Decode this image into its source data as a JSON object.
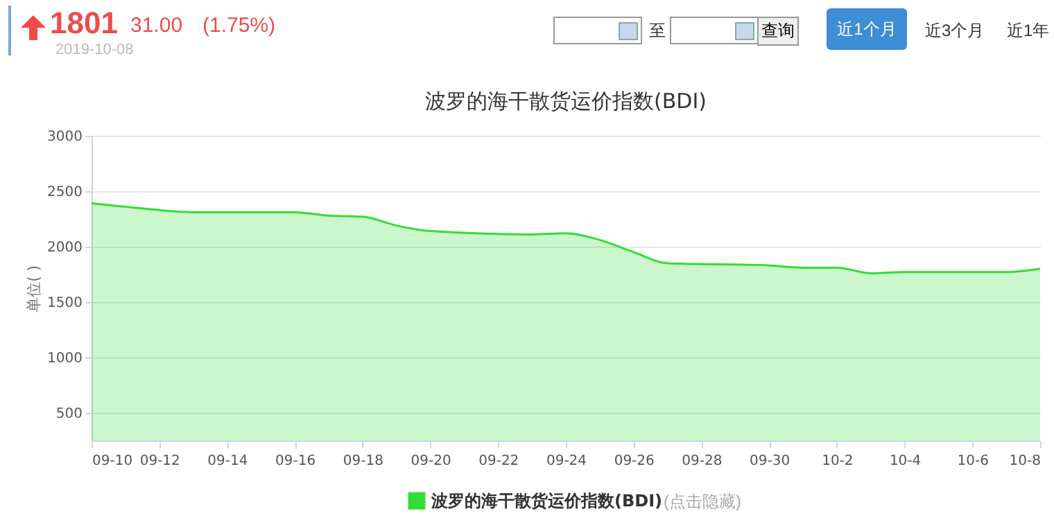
{
  "chart_data": {
    "type": "area",
    "title": "波罗的海干散货运价指数(BDI)",
    "ylabel": "单位( )",
    "x": [
      "2019-09-10",
      "2019-09-11",
      "2019-09-12",
      "2019-09-13",
      "2019-09-16",
      "2019-09-17",
      "2019-09-18",
      "2019-09-19",
      "2019-09-20",
      "2019-09-23",
      "2019-09-24",
      "2019-09-25",
      "2019-09-26",
      "2019-09-27",
      "2019-09-30",
      "2019-10-01",
      "2019-10-02",
      "2019-10-03",
      "2019-10-04",
      "2019-10-07",
      "2019-10-08"
    ],
    "series": [
      {
        "name": "波罗的海干散货运价指数(BDI)",
        "color": "#33dd33",
        "values": [
          2390,
          2360,
          2330,
          2310,
          2310,
          2280,
          2270,
          2190,
          2140,
          2110,
          2120,
          2060,
          1950,
          1850,
          1830,
          1810,
          1810,
          1760,
          1770,
          1770,
          1800
        ]
      }
    ],
    "xlim": [
      "2019-09-10",
      "2019-10-08"
    ],
    "xticks": [
      {
        "value": "2019-09-10",
        "label": "09-10"
      },
      {
        "value": "2019-09-12",
        "label": "09-12"
      },
      {
        "value": "2019-09-14",
        "label": "09-14"
      },
      {
        "value": "2019-09-16",
        "label": "09-16"
      },
      {
        "value": "2019-09-18",
        "label": "09-18"
      },
      {
        "value": "2019-09-20",
        "label": "09-20"
      },
      {
        "value": "2019-09-22",
        "label": "09-22"
      },
      {
        "value": "2019-09-24",
        "label": "09-24"
      },
      {
        "value": "2019-09-26",
        "label": "09-26"
      },
      {
        "value": "2019-09-28",
        "label": "09-28"
      },
      {
        "value": "2019-09-30",
        "label": "09-30"
      },
      {
        "value": "2019-10-02",
        "label": "10-2"
      },
      {
        "value": "2019-10-04",
        "label": "10-4"
      },
      {
        "value": "2019-10-06",
        "label": "10-6"
      },
      {
        "value": "2019-10-08",
        "label": "10-8"
      }
    ],
    "ylim": [
      250,
      3000
    ],
    "yticks": [
      500,
      1000,
      1500,
      2000,
      2500,
      3000
    ],
    "grid": "y",
    "legend": "bottom",
    "annotations": [
      "1801",
      "31.00",
      "(1.75%)",
      "2019-10-08",
      "至",
      "查询",
      "近1个月",
      "近3个月",
      "近1年",
      "(点击隐藏)"
    ]
  }
}
